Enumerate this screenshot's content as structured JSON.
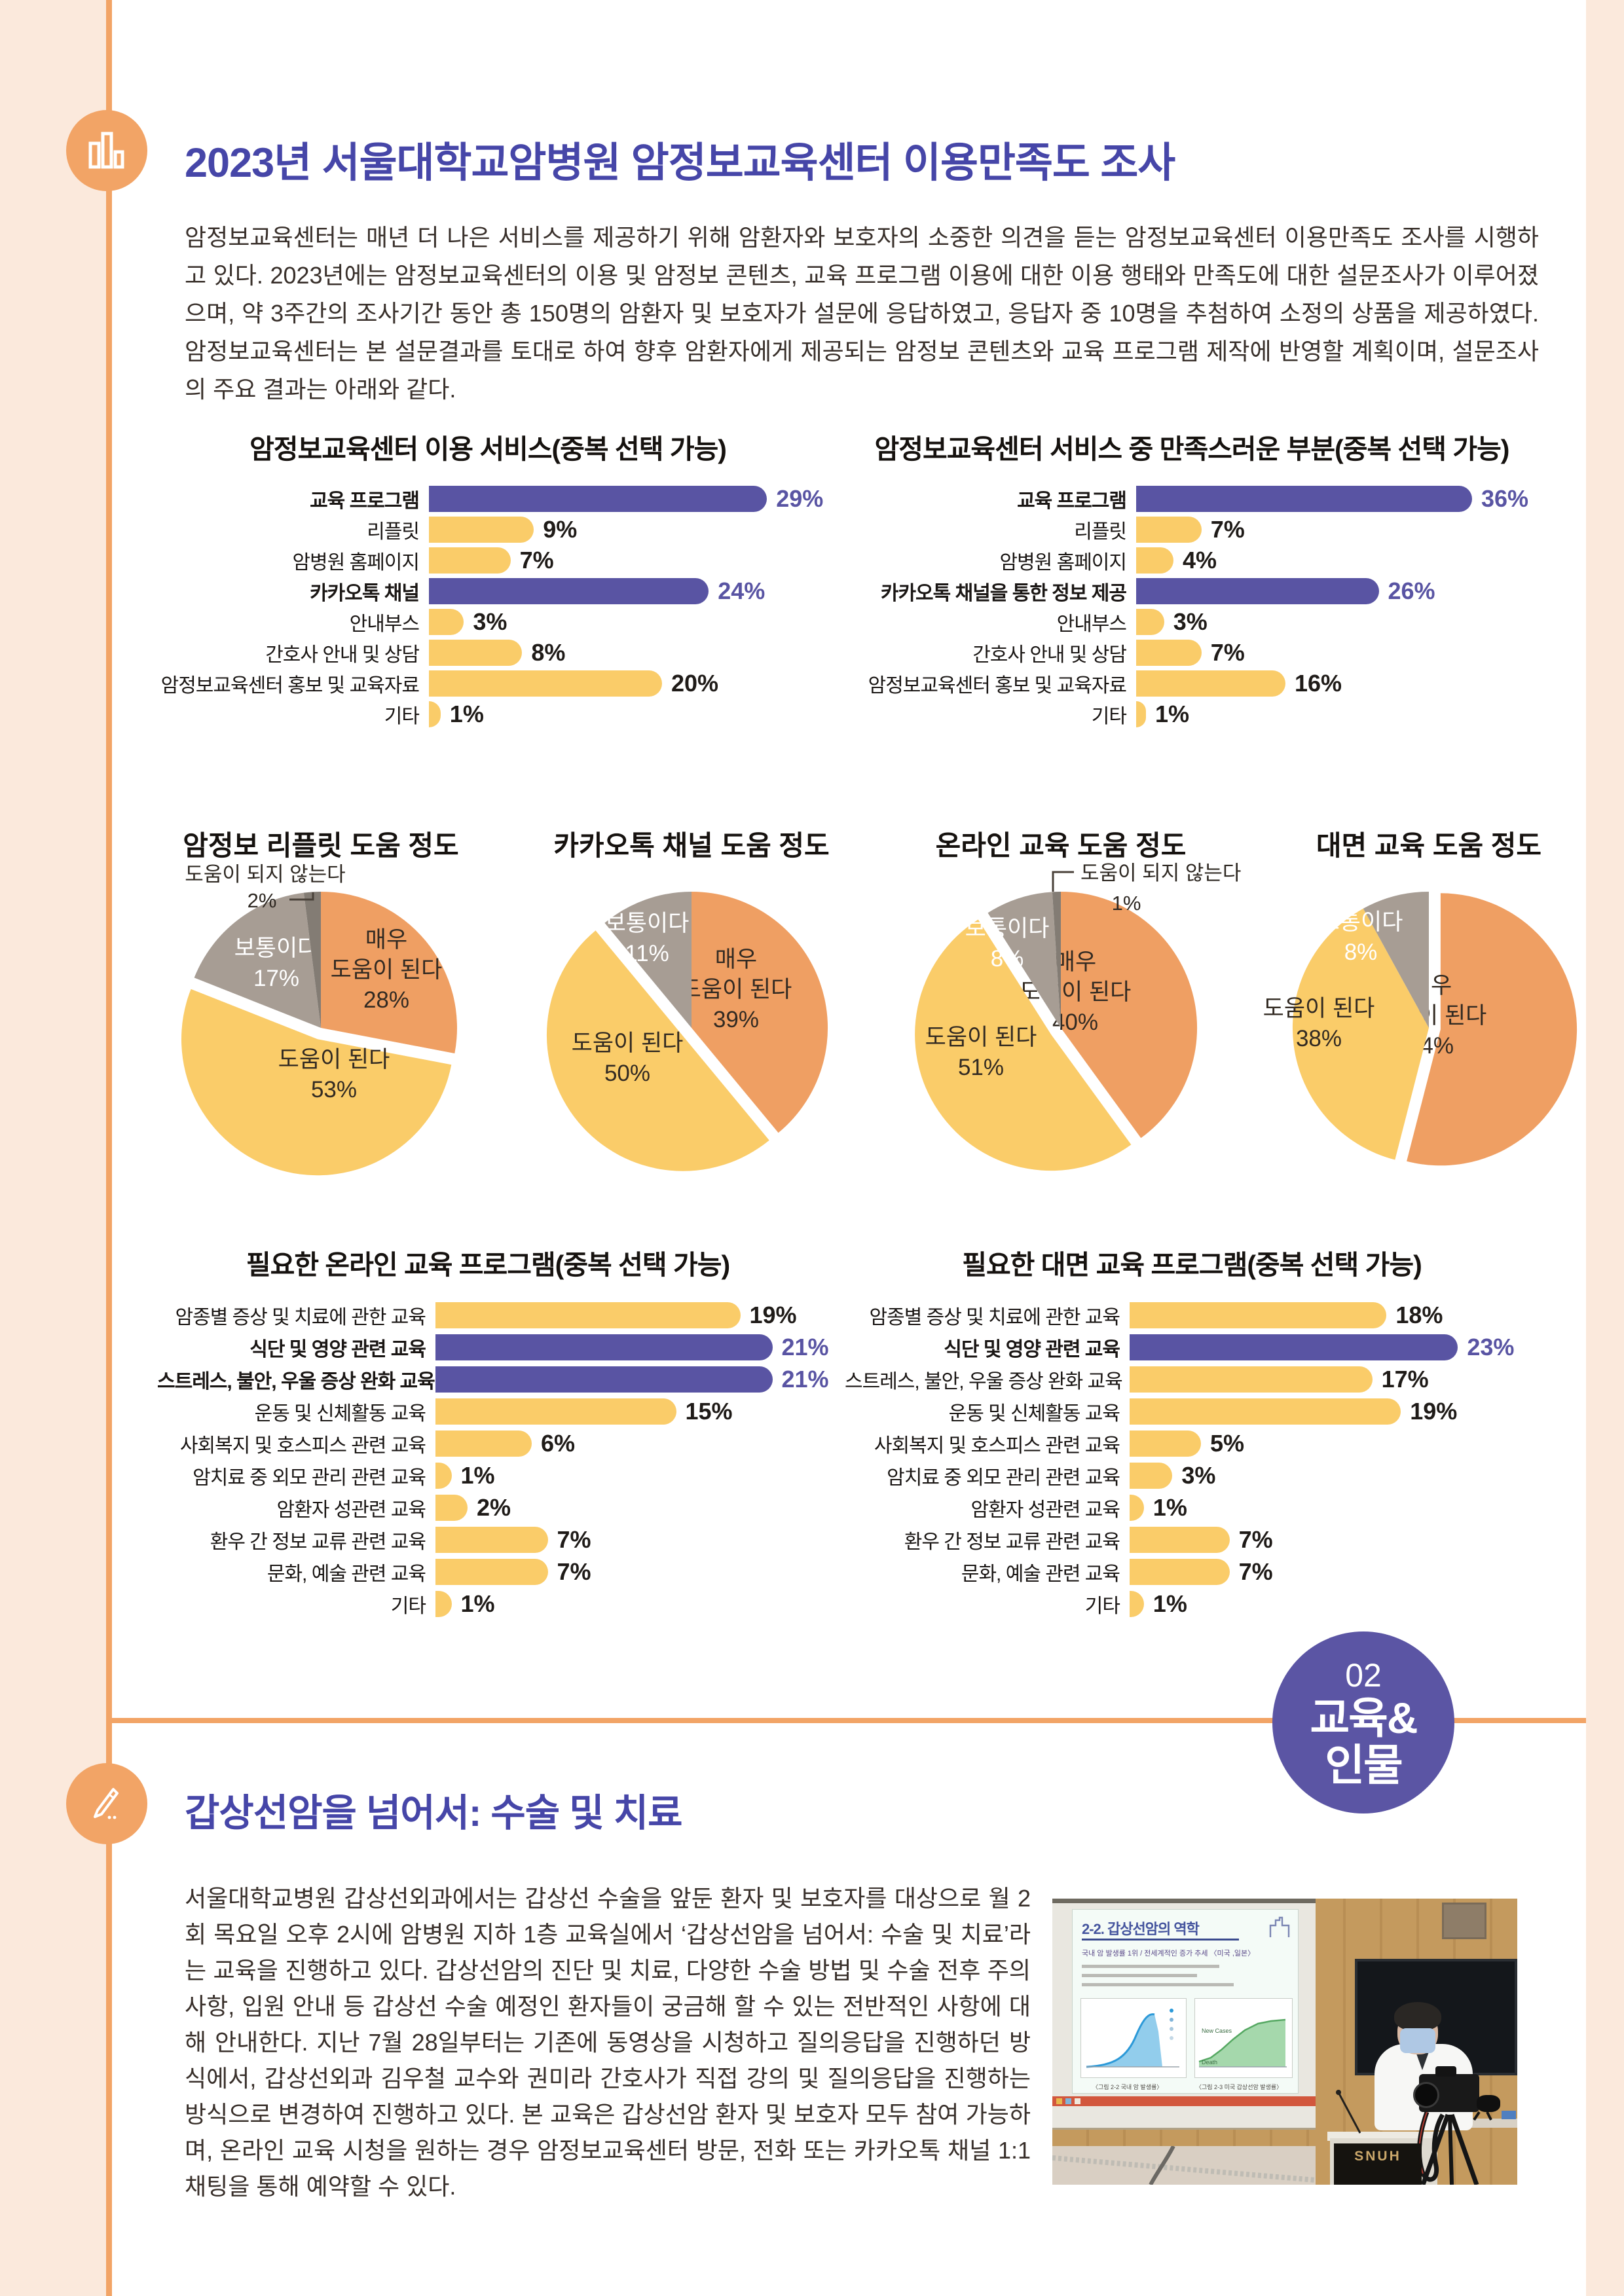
{
  "colors": {
    "accent_orange": "#F2A466",
    "margin_peach": "#FBE9DC",
    "bar_purple": "#5954A3",
    "bar_yellow": "#FACC69",
    "pie_orange": "#EF9F63",
    "pie_gray": "#A79D94",
    "pie_dark_gray": "#837C74",
    "title_blue": "#4646A8",
    "badge_purple": "#5B55A4"
  },
  "section1": {
    "title": "2023년 서울대학교암병원 암정보교육센터 이용만족도 조사",
    "body": "암정보교육센터는 매년 더 나은 서비스를 제공하기 위해 암환자와 보호자의 소중한 의견을 듣는 암정보교육센터 이용만족도 조사를 시행하고 있다. 2023년에는 암정보교육센터의 이용 및 암정보 콘텐츠, 교육 프로그램 이용에 대한 이용 행태와 만족도에 대한 설문조사가 이루어졌으며, 약 3주간의 조사기간 동안 총 150명의 암환자 및 보호자가 설문에 응답하였고, 응답자 중 10명을 추첨하여 소정의 상품을 제공하였다. 암정보교육센터는 본 설문결과를 토대로 하여 향후 암환자에게 제공되는 암정보 콘텐츠와 교육 프로그램 제작에 반영할 계획이며, 설문조사의 주요 결과는 아래와 같다."
  },
  "badge": {
    "number": "02",
    "line1": "교육&",
    "line2": "인물"
  },
  "section2": {
    "title": "갑상선암을 넘어서: 수술 및 치료",
    "body": "서울대학교병원 갑상선외과에서는 갑상선 수술을 앞둔 환자 및 보호자를 대상으로 월 2회 목요일 오후 2시에 암병원 지하 1층 교육실에서 ‘갑상선암을 넘어서: 수술 및 치료’라는 교육을 진행하고 있다. 갑상선암의 진단 및 치료, 다양한 수술 방법 및 수술 전후 주의 사항, 입원 안내 등 갑상선 수술 예정인 환자들이 궁금해 할 수 있는 전반적인 사항에 대해 안내한다. 지난 7월 28일부터는 기존에 동영상을 시청하고 질의응답을 진행하던 방식에서, 갑상선외과 김우철 교수와 권미라 간호사가 직접 강의 및 질의응답을 진행하는 방식으로 변경하여 진행하고 있다. 본 교육은 갑상선암 환자 및 보호자 모두 참여 가능하며, 온라인 교육 시청을 원하는 경우 암정보교육센터 방문, 전화 또는 카카오톡 채널 1:1 채팅을 통해 예약할 수 있다.",
    "photo": {
      "slide_title": "2-2. 갑상선암의 역학",
      "slide_subtitle": "국내 암 발생률 1위 / 전세계적인 증가 추세 〈미국 ,일본〉",
      "slide_caption_left": "〈그림 2-2 국내 암 발생률〉",
      "slide_caption_right": "〈그림 2-3 미국 갑상선암 발생률〉",
      "green_chart_label_top": "New Cases",
      "green_chart_label_bottom": "Death",
      "podium_text": "SNUH"
    }
  },
  "chart_data": [
    {
      "id": "svc_use",
      "type": "bar",
      "unit": "%",
      "title": "암정보교육센터 이용 서비스(중복 선택 가능)",
      "categories": [
        "교육 프로그램",
        "리플릿",
        "암병원 홈페이지",
        "카카오톡 채널",
        "안내부스",
        "간호사 안내 및 상담",
        "암정보교육센터 홍보 및 교육자료",
        "기타"
      ],
      "values": [
        29,
        9,
        7,
        24,
        3,
        8,
        20,
        1
      ],
      "highlighted": [
        "교육 프로그램",
        "카카오톡 채널"
      ]
    },
    {
      "id": "svc_sat",
      "type": "bar",
      "unit": "%",
      "title": "암정보교육센터 서비스 중 만족스러운 부분(중복 선택 가능)",
      "categories": [
        "교육 프로그램",
        "리플릿",
        "암병원 홈페이지",
        "카카오톡 채널을 통한 정보 제공",
        "안내부스",
        "간호사 안내 및 상담",
        "암정보교육센터 홍보 및 교육자료",
        "기타"
      ],
      "values": [
        36,
        7,
        4,
        26,
        3,
        7,
        16,
        1
      ],
      "highlighted": [
        "교육 프로그램",
        "카카오톡 채널을 통한 정보 제공"
      ]
    },
    {
      "id": "pie_leaflet",
      "type": "pie",
      "unit": "%",
      "title": "암정보 리플릿 도움 정도",
      "labels": [
        "매우 도움이 된다",
        "도움이 된다",
        "보통이다",
        "도움이 되지 않는다"
      ],
      "values": [
        28,
        53,
        17,
        2
      ],
      "exploded": "도움이 된다",
      "callout": "도움이 되지 않는다"
    },
    {
      "id": "pie_kakao",
      "type": "pie",
      "unit": "%",
      "title": "카카오톡 채널 도움 정도",
      "labels": [
        "매우 도움이 된다",
        "도움이 된다",
        "보통이다"
      ],
      "values": [
        39,
        50,
        11
      ],
      "exploded": "도움이 된다"
    },
    {
      "id": "pie_online",
      "type": "pie",
      "unit": "%",
      "title": "온라인 교육 도움 정도",
      "labels": [
        "매우 도움이 된다",
        "도움이 된다",
        "보통이다",
        "도움이 되지 않는다"
      ],
      "values": [
        40,
        51,
        8,
        1
      ],
      "exploded": "도움이 된다",
      "callout": "도움이 되지 않는다"
    },
    {
      "id": "pie_offline",
      "type": "pie",
      "unit": "%",
      "title": "대면 교육 도움 정도",
      "labels": [
        "매우 도움이 된다",
        "도움이 된다",
        "보통이다"
      ],
      "values": [
        54,
        38,
        8
      ],
      "exploded": "매우 도움이 된다"
    },
    {
      "id": "online_need",
      "type": "bar",
      "unit": "%",
      "title": "필요한 온라인 교육 프로그램(중복 선택 가능)",
      "categories": [
        "암종별 증상 및 치료에 관한 교육",
        "식단 및 영양 관련 교육",
        "스트레스, 불안, 우울 증상 완화 교육",
        "운동 및 신체활동 교육",
        "사회복지 및 호스피스 관련 교육",
        "암치료 중 외모 관리 관련 교육",
        "암환자 성관련 교육",
        "환우 간 정보 교류 관련 교육",
        "문화, 예술 관련 교육",
        "기타"
      ],
      "values": [
        19,
        21,
        21,
        15,
        6,
        1,
        2,
        7,
        7,
        1
      ],
      "highlighted": [
        "식단 및 영양 관련 교육",
        "스트레스, 불안, 우울 증상 완화 교육"
      ]
    },
    {
      "id": "offline_need",
      "type": "bar",
      "unit": "%",
      "title": "필요한 대면 교육 프로그램(중복 선택 가능)",
      "categories": [
        "암종별 증상 및 치료에 관한 교육",
        "식단 및 영양 관련 교육",
        "스트레스, 불안, 우울 증상 완화 교육",
        "운동 및 신체활동 교육",
        "사회복지 및 호스피스 관련 교육",
        "암치료 중 외모 관리 관련 교육",
        "암환자 성관련 교육",
        "환우 간 정보 교류 관련 교육",
        "문화, 예술 관련 교육",
        "기타"
      ],
      "values": [
        18,
        23,
        17,
        19,
        5,
        3,
        1,
        7,
        7,
        1
      ],
      "highlighted": [
        "식단 및 영양 관련 교육"
      ]
    }
  ]
}
